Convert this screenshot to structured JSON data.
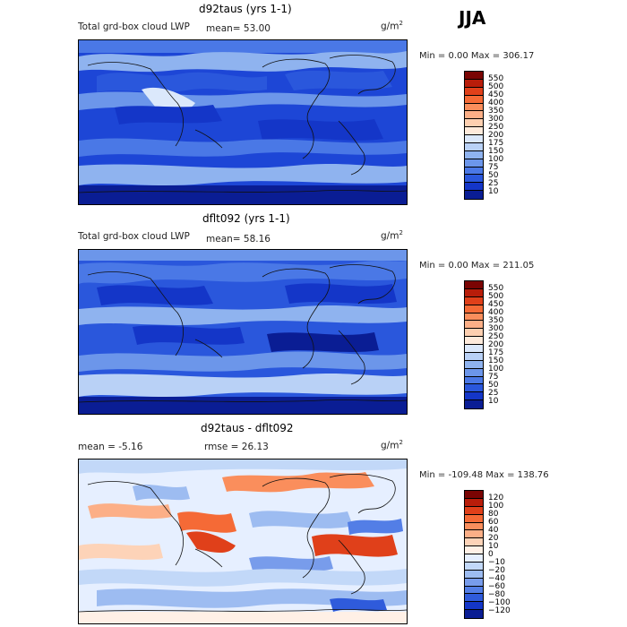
{
  "season": "JJA",
  "panels": [
    {
      "title": "d92taus (yrs 1-1)",
      "subtitle": "Total grd-box cloud LWP",
      "mean_text": "mean=  53.00",
      "units_base": "g/m",
      "units_exp": "2",
      "minmax_text": "Min =    0.00 Max = 306.17",
      "colorbar": {
        "labels": [
          "550",
          "500",
          "450",
          "400",
          "350",
          "300",
          "250",
          "200",
          "175",
          "150",
          "100",
          "75",
          "50",
          "25",
          "10"
        ],
        "colors": [
          "#7a0403",
          "#b81d0a",
          "#e0401a",
          "#f56a36",
          "#fa8e5c",
          "#fcaf87",
          "#fdcfb0",
          "#feeadb",
          "#dbe8fb",
          "#b9d1f6",
          "#8fb3ef",
          "#6c96ea",
          "#4a78e6",
          "#2a57dc",
          "#1436c8",
          "#0a1d94"
        ]
      }
    },
    {
      "title": "dflt092 (yrs 1-1)",
      "subtitle": "Total grd-box cloud LWP",
      "mean_text": "mean=  58.16",
      "units_base": "g/m",
      "units_exp": "2",
      "minmax_text": "Min =    0.00 Max = 211.05",
      "colorbar": {
        "labels": [
          "550",
          "500",
          "450",
          "400",
          "350",
          "300",
          "250",
          "200",
          "175",
          "150",
          "100",
          "75",
          "50",
          "25",
          "10"
        ],
        "colors": [
          "#7a0403",
          "#b81d0a",
          "#e0401a",
          "#f56a36",
          "#fa8e5c",
          "#fcaf87",
          "#fdcfb0",
          "#feeadb",
          "#dbe8fb",
          "#b9d1f6",
          "#8fb3ef",
          "#6c96ea",
          "#4a78e6",
          "#2a57dc",
          "#1436c8",
          "#0a1d94"
        ]
      }
    },
    {
      "title": "d92taus - dflt092",
      "subtitle": "mean =   -5.16",
      "mean_text": "rmse =  26.13",
      "units_base": "g/m",
      "units_exp": "2",
      "minmax_text": "Min = -109.48 Max = 138.76",
      "colorbar": {
        "labels": [
          "120",
          "100",
          "80",
          "60",
          "40",
          "20",
          "10",
          "0",
          "−10",
          "−20",
          "−40",
          "−60",
          "−80",
          "−100",
          "−120"
        ],
        "colors": [
          "#7a0403",
          "#b81d0a",
          "#e0401a",
          "#f56a36",
          "#fa8e5c",
          "#fcaf87",
          "#fdd3b8",
          "#fff0e6",
          "#e6efff",
          "#c2d8f8",
          "#9dbcf1",
          "#789ceb",
          "#537ee6",
          "#2f5bdb",
          "#1436c8",
          "#0a1d94"
        ]
      }
    }
  ],
  "chart_data": [
    {
      "type": "heatmap",
      "title": "d92taus (yrs 1-1)",
      "subtitle": "Total grd-box cloud LWP",
      "mean": 53.0,
      "min": 0.0,
      "max": 306.17,
      "units": "g/m2",
      "contour_levels": [
        10,
        25,
        50,
        75,
        100,
        150,
        175,
        200,
        250,
        300,
        350,
        400,
        450,
        500,
        550
      ]
    },
    {
      "type": "heatmap",
      "title": "dflt092 (yrs 1-1)",
      "subtitle": "Total grd-box cloud LWP",
      "mean": 58.16,
      "min": 0.0,
      "max": 211.05,
      "units": "g/m2",
      "contour_levels": [
        10,
        25,
        50,
        75,
        100,
        150,
        175,
        200,
        250,
        300,
        350,
        400,
        450,
        500,
        550
      ]
    },
    {
      "type": "heatmap",
      "title": "d92taus - dflt092",
      "mean": -5.16,
      "rmse": 26.13,
      "min": -109.48,
      "max": 138.76,
      "units": "g/m2",
      "contour_levels": [
        -120,
        -100,
        -80,
        -60,
        -40,
        -20,
        -10,
        0,
        10,
        20,
        40,
        60,
        80,
        100,
        120
      ]
    }
  ]
}
